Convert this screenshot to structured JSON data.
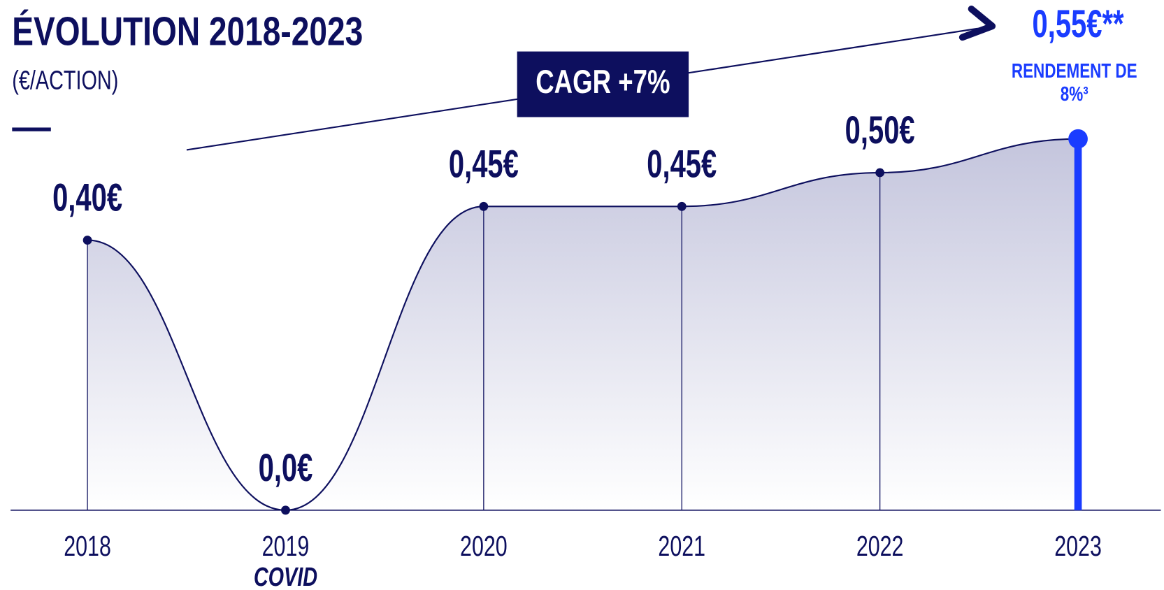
{
  "chart_data": {
    "type": "area",
    "title": "ÉVOLUTION 2018-2023",
    "subtitle": "(€/ACTION)",
    "categories": [
      "2018",
      "2019",
      "2020",
      "2021",
      "2022",
      "2023"
    ],
    "category_notes": [
      null,
      "COVID",
      null,
      null,
      null,
      null
    ],
    "values": [
      0.4,
      0.0,
      0.45,
      0.45,
      0.5,
      0.55
    ],
    "value_labels": [
      "0,40€",
      "0,0€",
      "0,45€",
      "0,45€",
      "0,50€",
      "0,55€**"
    ],
    "color": "#0d0f5e",
    "highlight_color": "#1a3cff",
    "ylim": [
      0,
      0.6
    ],
    "annotations": {
      "cagr": "CAGR +7%",
      "yield": [
        "RENDEMENT DE",
        "8%³"
      ]
    }
  }
}
